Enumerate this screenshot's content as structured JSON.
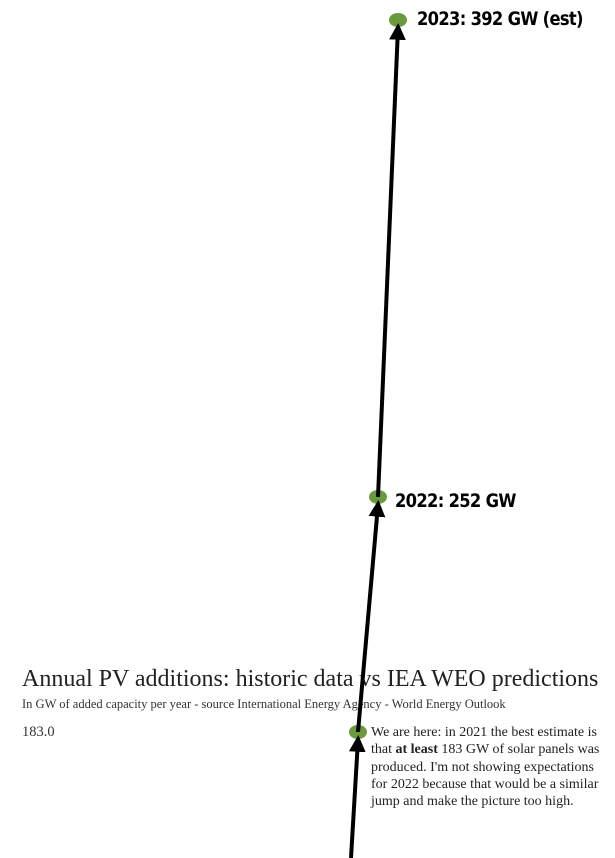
{
  "chart_data": {
    "type": "line",
    "title": "Annual PV additions: historic data vs IEA WEO predictions",
    "subtitle": "In GW of added capacity per year - source International Energy Agency - World Energy Outlook",
    "y_axis_value_label": "183.0",
    "series": [
      {
        "x": [
          2021,
          2022,
          2023
        ],
        "y": [
          183,
          252,
          392
        ],
        "color": "#000000"
      }
    ],
    "point_color": "#6a9a3c",
    "annotations": [
      {
        "year": 2022,
        "text": "2022: 252 GW"
      },
      {
        "year": 2023,
        "text": "2023: 392 GW (est)"
      }
    ],
    "note": {
      "part1": "We are here: in 2021 the best estimate is that ",
      "bold": "at least",
      "part2": " 183 GW of solar panels was produced. I'm not showing expectations for 2022 because that would be a similar jump and make the picture too high."
    }
  }
}
